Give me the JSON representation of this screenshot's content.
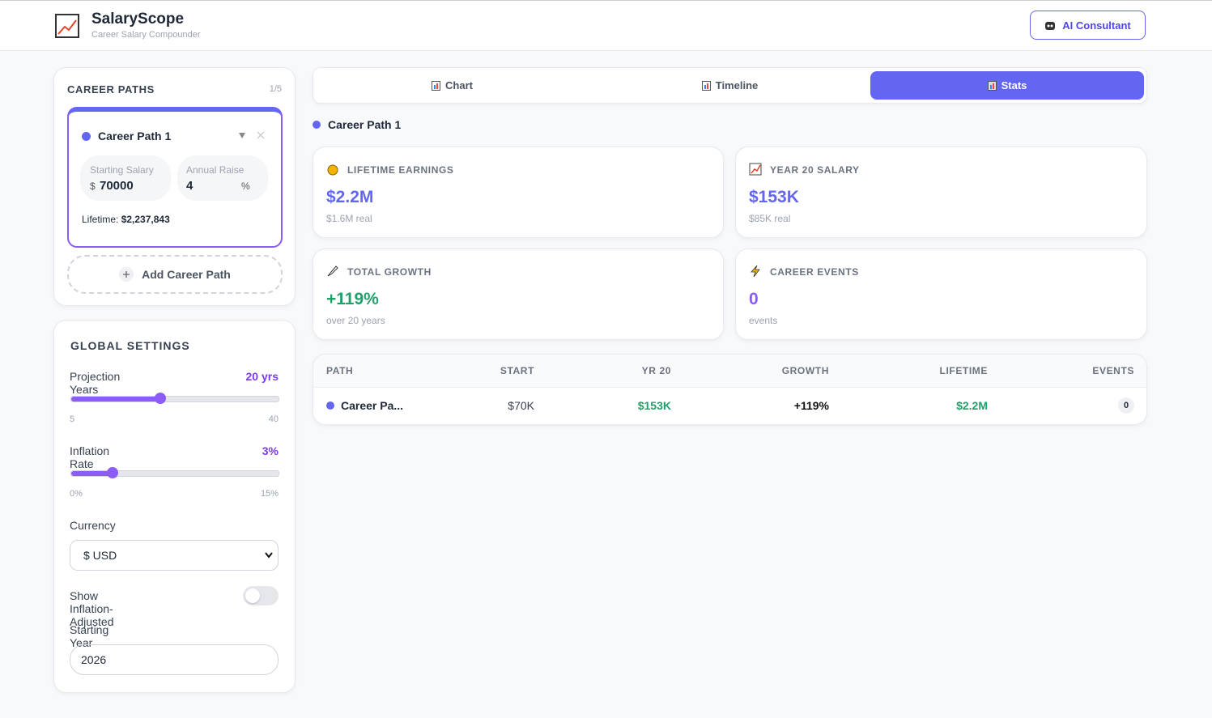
{
  "header": {
    "title": "SalaryScope",
    "subtitle": "Career Salary Compounder",
    "button": "AI Consultant"
  },
  "career_paths": {
    "heading": "CAREER PATHS",
    "count": "1/5",
    "paths": [
      {
        "name": "Career Path 1",
        "starting_salary_label": "Starting Salary",
        "currency_symbol": "$",
        "starting_salary": "70000",
        "annual_raise_label": "Annual Raise",
        "annual_raise": "4",
        "percent_symbol": "%",
        "lifetime_label": "Lifetime:",
        "lifetime": "$2,237,843"
      }
    ],
    "add_button": "Add Career Path"
  },
  "global_settings": {
    "heading": "GLOBAL SETTINGS",
    "projection_years": {
      "label": "Projection Years",
      "value_label": "20 yrs",
      "min_label": "5",
      "max_label": "40",
      "value": 20,
      "min": 5,
      "max": 40
    },
    "inflation_rate": {
      "label": "Inflation Rate",
      "value_label": "3%",
      "min_label": "0%",
      "max_label": "15%",
      "value": 3,
      "min": 0,
      "max": 15
    },
    "currency": {
      "label": "Currency",
      "selected": "$ USD"
    },
    "inflation_adjusted": {
      "label": "Show Inflation-Adjusted",
      "on": false
    },
    "starting_year": {
      "label": "Starting Year",
      "value": "2026"
    }
  },
  "tabs": {
    "items": [
      "Chart",
      "Timeline",
      "Stats"
    ],
    "active": 2
  },
  "selected_path": "Career Path 1",
  "stats": [
    {
      "label": "LIFETIME EARNINGS",
      "value": "$2.2M",
      "sub": "$1.6M real"
    },
    {
      "label": "YEAR 20 SALARY",
      "value": "$153K",
      "sub": "$85K real"
    },
    {
      "label": "TOTAL GROWTH",
      "value": "+119%",
      "sub": "over 20 years"
    },
    {
      "label": "CAREER EVENTS",
      "value": "0",
      "sub": "events"
    }
  ],
  "table": {
    "headers": [
      "PATH",
      "START",
      "YR 20",
      "GROWTH",
      "LIFETIME",
      "EVENTS"
    ],
    "rows": [
      [
        "Career Pa...",
        "$70K",
        "$153K",
        "+119%",
        "$2.2M",
        "0"
      ]
    ]
  }
}
